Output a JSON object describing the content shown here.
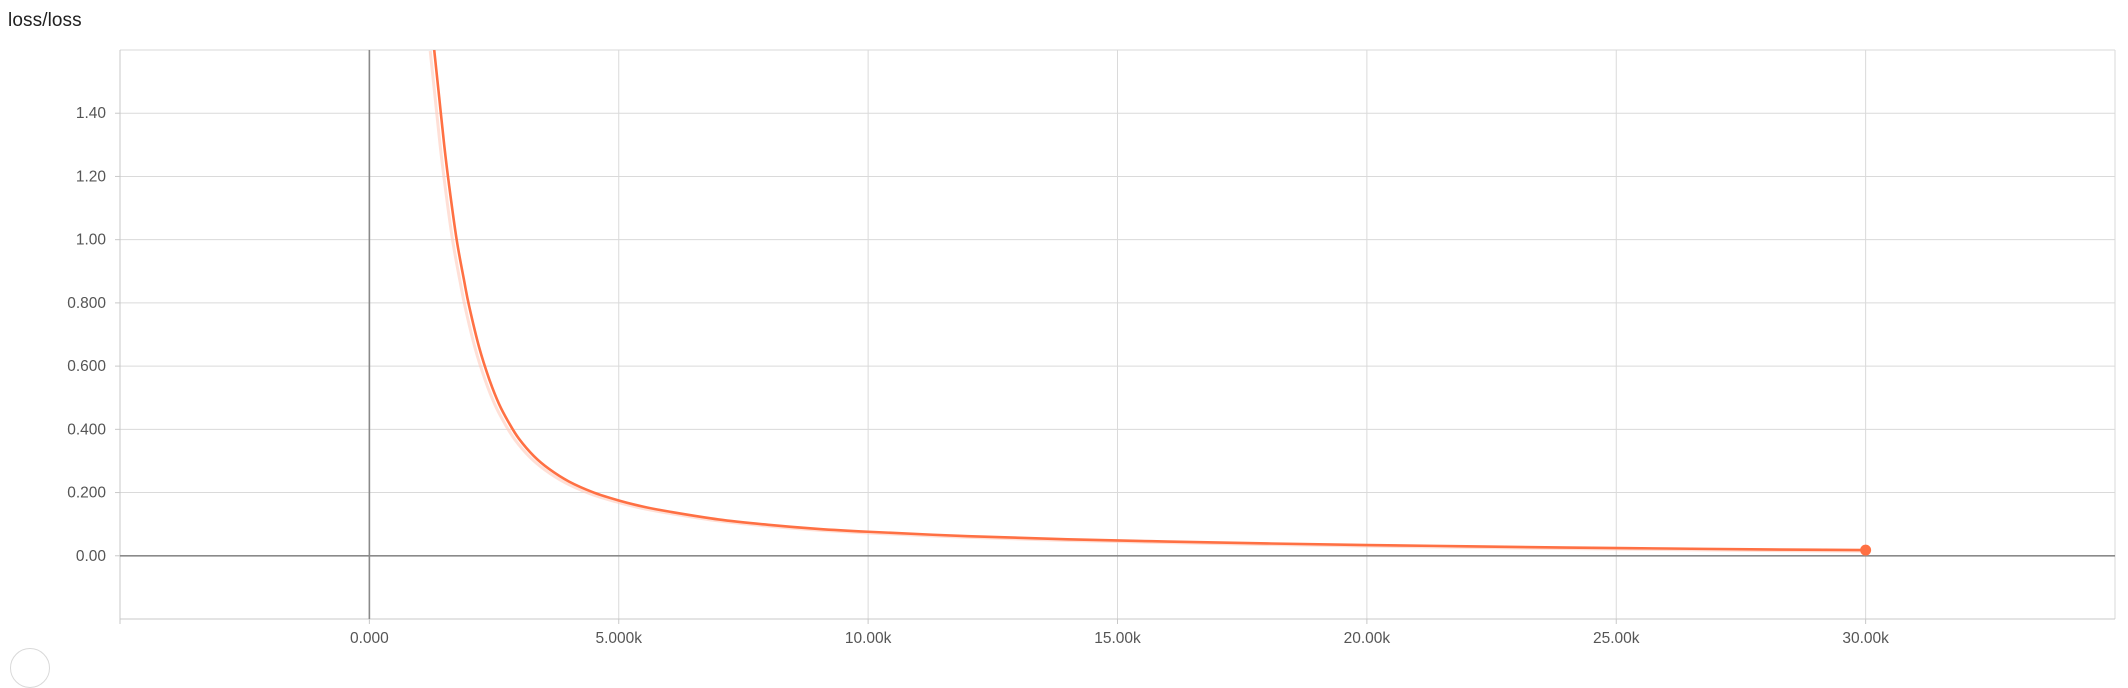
{
  "title": "loss/loss",
  "colors": {
    "series": "#ff7043",
    "series_raw": "#ffccbc",
    "grid": "#dadada",
    "zero_axis": "#8a8a8a"
  },
  "chart_data": {
    "type": "line",
    "title": "loss/loss",
    "xlabel": "",
    "ylabel": "",
    "xlim": [
      -5000,
      35000
    ],
    "ylim": [
      -0.2,
      1.6
    ],
    "grid": true,
    "x_ticks": [
      0,
      5000,
      10000,
      15000,
      20000,
      25000,
      30000
    ],
    "x_tick_labels": [
      "0.000",
      "5.000k",
      "10.00k",
      "15.00k",
      "20.00k",
      "25.00k",
      "30.00k"
    ],
    "y_ticks": [
      0,
      0.2,
      0.4,
      0.6,
      0.8,
      1.0,
      1.2,
      1.4
    ],
    "y_tick_labels": [
      "0.00",
      "0.200",
      "0.400",
      "0.600",
      "0.800",
      "1.00",
      "1.20",
      "1.40"
    ],
    "series": [
      {
        "color": "#ff7043",
        "x": [
          1300,
          1400,
          1500,
          1600,
          1750,
          1900,
          2000,
          2200,
          2400,
          2600,
          2800,
          3000,
          3300,
          3600,
          4000,
          4500,
          5000,
          5500,
          6000,
          7000,
          8000,
          9000,
          10000,
          12000,
          14000,
          16000,
          18000,
          20000,
          22000,
          24000,
          26000,
          28000,
          30000
        ],
        "values": [
          1.6,
          1.45,
          1.3,
          1.17,
          1.0,
          0.87,
          0.79,
          0.66,
          0.56,
          0.48,
          0.42,
          0.37,
          0.315,
          0.275,
          0.235,
          0.2,
          0.175,
          0.155,
          0.14,
          0.115,
          0.098,
          0.085,
          0.076,
          0.062,
          0.052,
          0.045,
          0.039,
          0.034,
          0.03,
          0.026,
          0.023,
          0.02,
          0.018
        ]
      }
    ]
  }
}
